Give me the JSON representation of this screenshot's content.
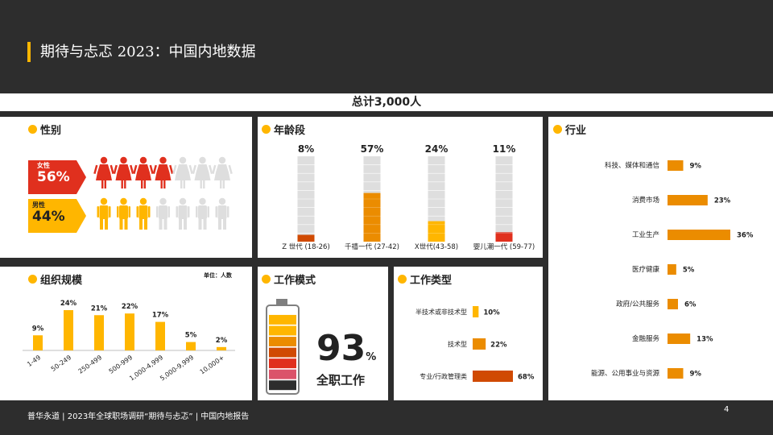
{
  "title": "期待与忐忑  2023：中国内地数据",
  "total": "总计3,000人",
  "footer": "普华永道 | 2023年全球职场调研“期待与忐忑” | 中国内地报告",
  "page_number": "4",
  "colors": {
    "accent": "#ffb600",
    "orange": "#eb8c00",
    "dark_orange": "#d04a02",
    "red": "#e0301e",
    "pink": "#db536a",
    "gray": "#dedede",
    "dark": "#2d2d2d"
  },
  "panels": {
    "gender": {
      "title": "性别",
      "female_label": "女性",
      "female_pct": "56%",
      "male_label": "男性",
      "male_pct": "44%"
    },
    "age": {
      "title": "年龄段"
    },
    "industry": {
      "title": "行业"
    },
    "org_size": {
      "title": "组织规模",
      "unit": "单位：人数"
    },
    "work_mode": {
      "title": "工作模式",
      "pct": "93",
      "pct_sign": "%",
      "label": "全职工作"
    },
    "work_type": {
      "title": "工作类型"
    }
  },
  "chart_data": [
    {
      "type": "pictogram",
      "categories": [
        "女性",
        "男性"
      ],
      "values": [
        56,
        44
      ],
      "filled_icons": [
        4,
        3
      ],
      "total_icons": 7,
      "colors": [
        "#e0301e",
        "#ffb600"
      ]
    },
    {
      "type": "bar",
      "categories": [
        "Z 世代 (18-26)",
        "千禧一代 (27-42)",
        "X世代(43-58)",
        "婴儿潮一代 (59-77)"
      ],
      "values": [
        8,
        57,
        24,
        11
      ],
      "labels": [
        "8%",
        "57%",
        "24%",
        "11%"
      ],
      "colors": [
        "#d04a02",
        "#eb8c00",
        "#ffb600",
        "#e0301e"
      ],
      "ylim": [
        0,
        100
      ]
    },
    {
      "type": "bar",
      "orientation": "horizontal",
      "categories": [
        "科技、媒体和通信",
        "消费市场",
        "工业生产",
        "医疗健康",
        "政府/公共服务",
        "金融服务",
        "能源、公用事业与资源"
      ],
      "values": [
        9,
        23,
        36,
        5,
        6,
        13,
        9
      ],
      "labels": [
        "9%",
        "23%",
        "36%",
        "5%",
        "6%",
        "13%",
        "9%"
      ],
      "color": "#eb8c00"
    },
    {
      "type": "bar",
      "categories": [
        "1-49",
        "50-249",
        "250-499",
        "500-999",
        "1,000-4,999",
        "5,000-9,999",
        "10,000+"
      ],
      "values": [
        9,
        24,
        21,
        22,
        17,
        5,
        2
      ],
      "labels": [
        "9%",
        "24%",
        "21%",
        "22%",
        "17%",
        "5%",
        "2%"
      ],
      "color": "#ffb600"
    },
    {
      "type": "bar",
      "orientation": "horizontal",
      "categories": [
        "半技术或非技术型",
        "技术型",
        "专业/行政管理类"
      ],
      "values": [
        10,
        22,
        68
      ],
      "labels": [
        "10%",
        "22%",
        "68%"
      ],
      "colors": [
        "#ffb600",
        "#eb8c00",
        "#d04a02"
      ]
    },
    {
      "type": "gauge",
      "value": 93,
      "segment_colors": [
        "#2d2d2d",
        "#db536a",
        "#e0301e",
        "#d04a02",
        "#eb8c00",
        "#ffb600",
        "#ffb600"
      ]
    }
  ]
}
